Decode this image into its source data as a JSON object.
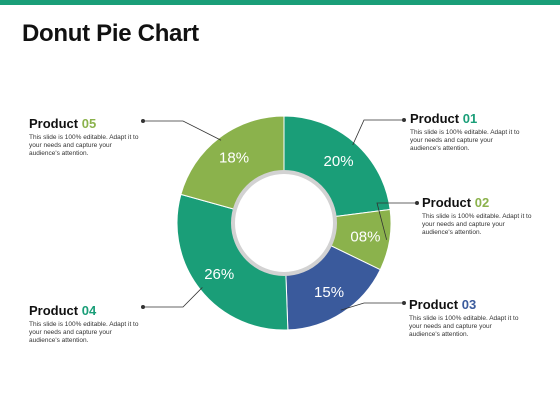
{
  "title": "Donut Pie Chart",
  "colors": {
    "topbar": "#1a9e78",
    "teal": "#1a9e78",
    "olive": "#8bb24c",
    "navy": "#3a5a9c"
  },
  "legend": [
    {
      "word": "Product",
      "num": "01",
      "num_color": "#1a9e78",
      "desc": "This slide is 100% editable. Adapt it to your needs and capture your audience's attention."
    },
    {
      "word": "Product",
      "num": "02",
      "num_color": "#8bb24c",
      "desc": "This slide is 100% editable. Adapt it to your needs and capture your audience's attention."
    },
    {
      "word": "Product",
      "num": "03",
      "num_color": "#3a5a9c",
      "desc": "This slide is 100% editable. Adapt it to your needs and capture your audience's attention."
    },
    {
      "word": "Product",
      "num": "04",
      "num_color": "#1a9e78",
      "desc": "This slide is 100% editable. Adapt it to your needs and capture your audience's attention."
    },
    {
      "word": "Product",
      "num": "05",
      "num_color": "#8bb24c",
      "desc": "This slide is 100% editable. Adapt it to your needs and capture your audience's attention."
    }
  ],
  "chart_data": {
    "type": "pie",
    "title": "Donut Pie Chart",
    "categories": [
      "Product 01",
      "Product 02",
      "Product 03",
      "Product 04",
      "Product 05"
    ],
    "values": [
      20,
      8,
      15,
      26,
      18
    ],
    "value_labels": [
      "20%",
      "08%",
      "15%",
      "26%",
      "18%"
    ],
    "colors": [
      "#1a9e78",
      "#8bb24c",
      "#3a5a9c",
      "#1a9e78",
      "#8bb24c"
    ]
  }
}
